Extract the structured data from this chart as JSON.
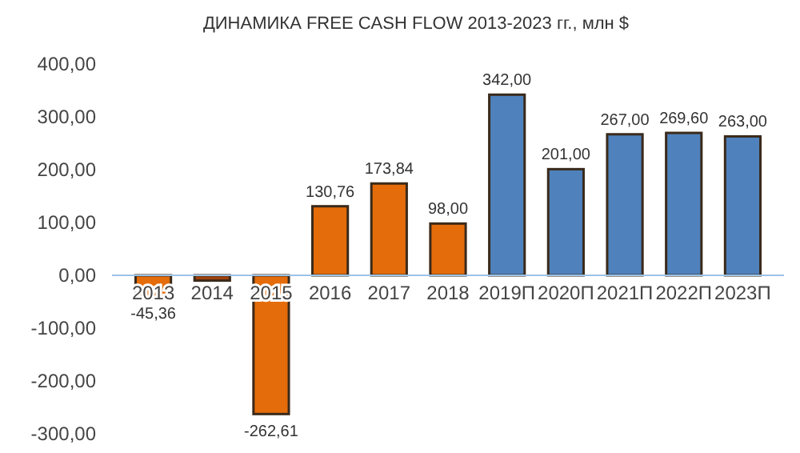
{
  "chart_data": {
    "type": "bar",
    "title": "ДИНАМИКА FREE CASH FLOW 2013-2023 гг., млн $",
    "categories": [
      "2013",
      "2014",
      "2015",
      "2016",
      "2017",
      "2018",
      "2019П",
      "2020П",
      "2021П",
      "2022П",
      "2023П"
    ],
    "values": [
      -45.36,
      -10,
      -262.61,
      130.76,
      173.84,
      98,
      342,
      201,
      267,
      269.6,
      263
    ],
    "colors": [
      "#e46c0a",
      "#a0400a",
      "#e46c0a",
      "#e46c0a",
      "#e46c0a",
      "#e46c0a",
      "#4f81bd",
      "#4f81bd",
      "#4f81bd",
      "#4f81bd",
      "#4f81bd"
    ],
    "value_labels": [
      "-45,36",
      null,
      "-262,61",
      "130,76",
      "173,84",
      "98,00",
      "342,00",
      "201,00",
      "267,00",
      "269,60",
      "263,00"
    ],
    "ylim": [
      -300,
      400
    ],
    "yticks": [
      {
        "value": -300,
        "label": "-300,00"
      },
      {
        "value": -200,
        "label": "-200,00"
      },
      {
        "value": -100,
        "label": "-100,00"
      },
      {
        "value": 0,
        "label": "0,00"
      },
      {
        "value": 100,
        "label": "100,00"
      },
      {
        "value": 200,
        "label": "200,00"
      },
      {
        "value": 300,
        "label": "300,00"
      },
      {
        "value": 400,
        "label": "400,00"
      }
    ],
    "grid": false
  }
}
